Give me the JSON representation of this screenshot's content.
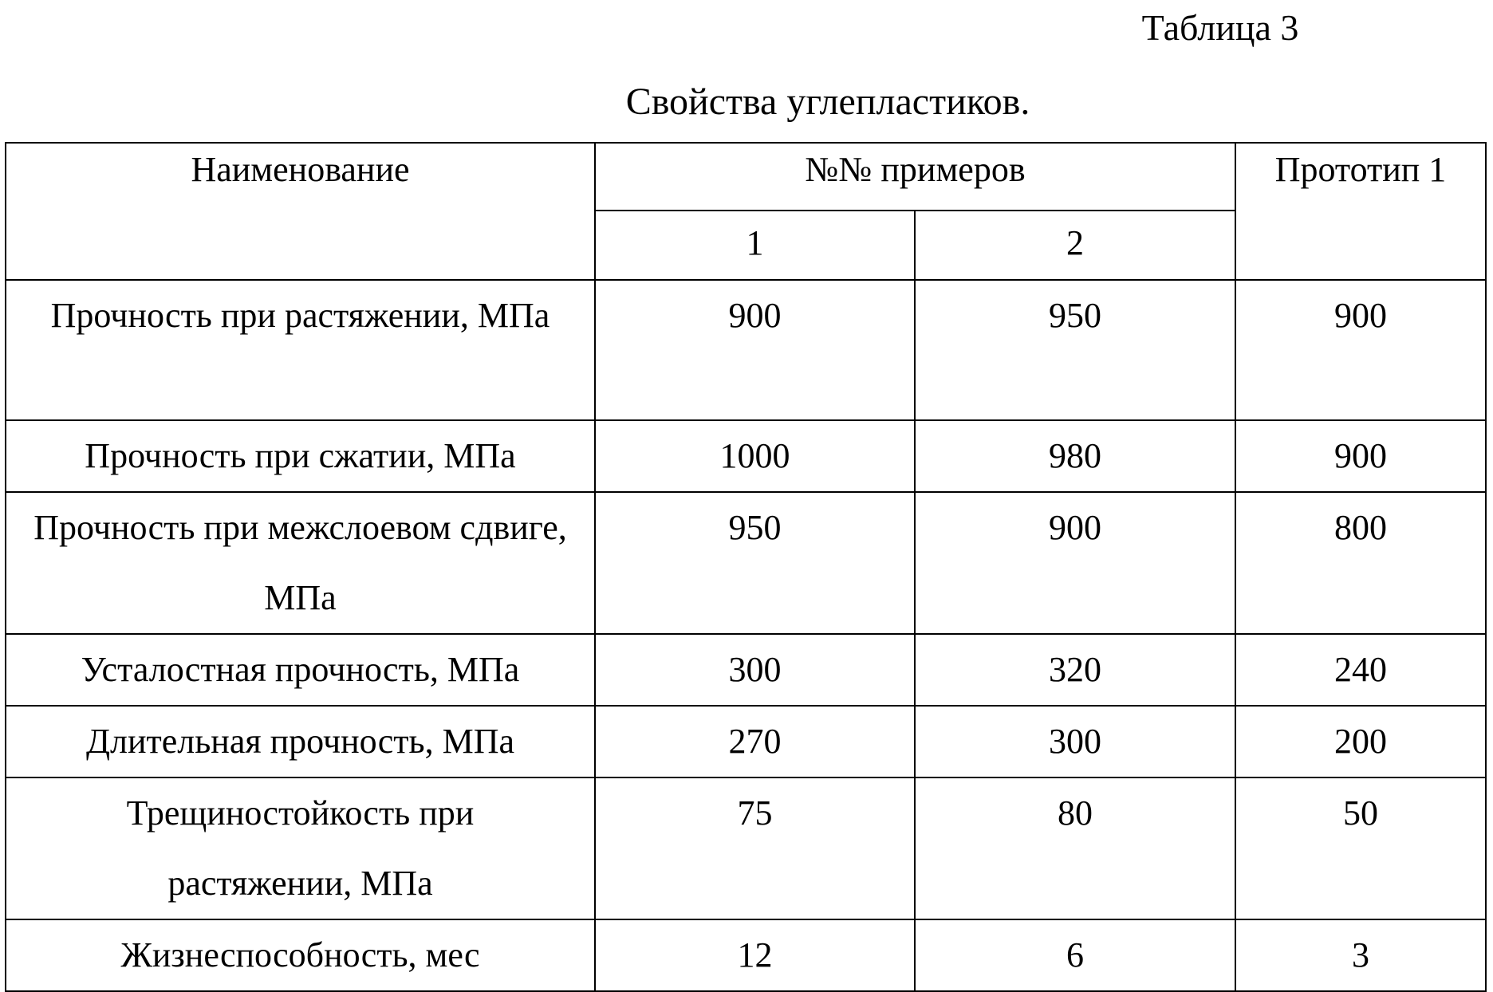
{
  "header": {
    "label": "Таблица 3",
    "title": "Свойства углепластиков."
  },
  "table": {
    "columns": {
      "name": "Наименование",
      "group": "№№ примеров",
      "sub": [
        "1",
        "2"
      ],
      "prototype": "Прототип 1"
    },
    "rows": [
      [
        "Прочность при растяжении, МПа",
        900,
        950,
        900
      ],
      [
        "Прочность при сжатии, МПа",
        1000,
        980,
        900
      ],
      [
        "Прочность при межслоевом сдвиге, МПа",
        950,
        900,
        800
      ],
      [
        "Усталостная прочность, МПа",
        300,
        320,
        240
      ],
      [
        "Длительная прочность, МПа",
        270,
        300,
        200
      ],
      [
        "Трещиностойкость при растяжении, МПа",
        75,
        80,
        50
      ],
      [
        "Жизнеспособность, мес",
        12,
        6,
        3
      ]
    ]
  }
}
